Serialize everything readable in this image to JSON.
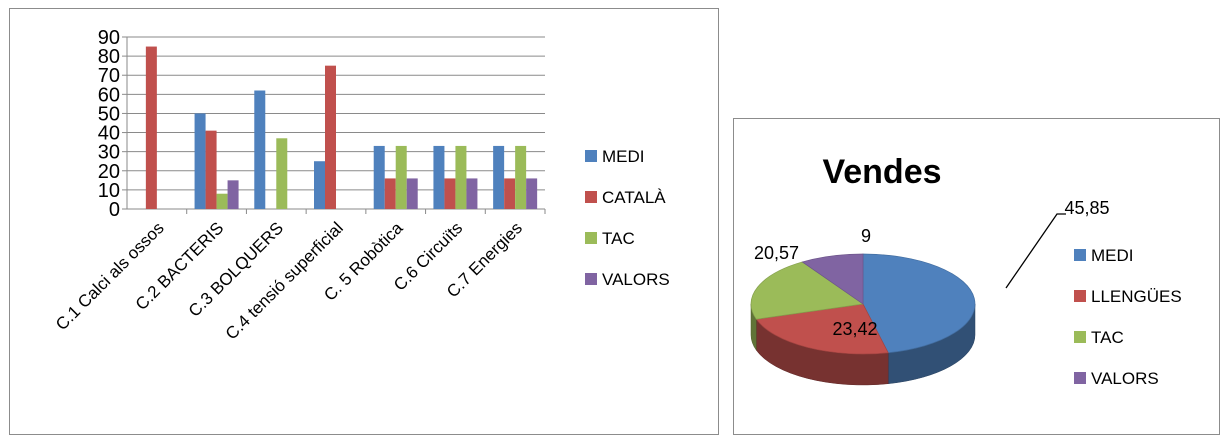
{
  "chart_data": [
    {
      "type": "bar",
      "title": "",
      "xlabel": "",
      "ylabel": "",
      "ylim": [
        0,
        90
      ],
      "yticks": [
        0,
        10,
        20,
        30,
        40,
        50,
        60,
        70,
        80,
        90
      ],
      "grid": true,
      "legend": "right",
      "categories": [
        "C.1 Calci als ossos",
        "C.2 BACTERIS",
        "C.3 BOLQUERS",
        "C.4 tensió superficial",
        "C. 5 Robòtica",
        "C.6 Circuïts",
        "C.7 Energies"
      ],
      "series": [
        {
          "name": "MEDI",
          "color": "#4f81bd",
          "values": [
            0,
            50,
            62,
            25,
            33,
            33,
            33
          ]
        },
        {
          "name": "CATALÀ",
          "color": "#c0504d",
          "values": [
            85,
            41,
            0,
            75,
            16,
            16,
            16
          ]
        },
        {
          "name": "TAC",
          "color": "#9bbb59",
          "values": [
            0,
            8,
            37,
            0,
            33,
            33,
            33
          ]
        },
        {
          "name": "VALORS",
          "color": "#8064a2",
          "values": [
            0,
            15,
            0,
            0,
            16,
            16,
            16
          ]
        }
      ]
    },
    {
      "type": "pie",
      "title": "Vendes",
      "legend": "right",
      "slices": [
        {
          "label": "MEDI",
          "value": 45.85,
          "display": "45,85",
          "color": "#4f81bd"
        },
        {
          "label": "LLENGÜES",
          "value": 23.42,
          "display": "23,42",
          "color": "#c0504d"
        },
        {
          "label": "TAC",
          "value": 20.57,
          "display": "20,57",
          "color": "#9bbb59"
        },
        {
          "label": "VALORS",
          "value": 9,
          "display": "9",
          "color": "#8064a2"
        }
      ]
    }
  ]
}
